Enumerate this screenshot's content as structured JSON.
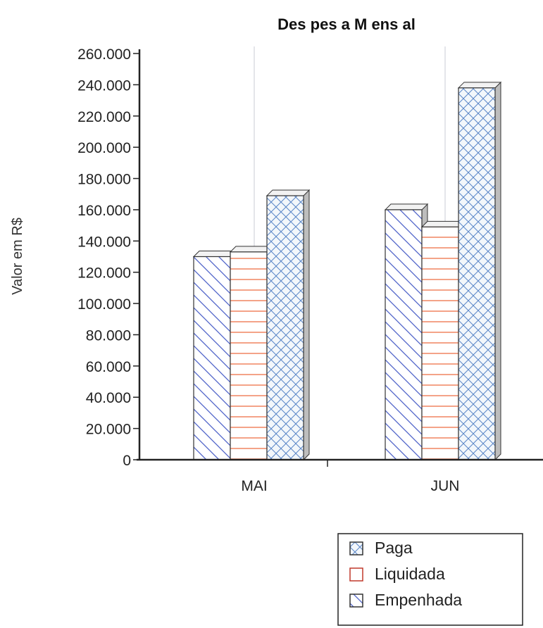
{
  "chart_data": {
    "type": "bar",
    "title": "Des pes a M ens al",
    "xlabel": "",
    "ylabel": "Valor em R$",
    "categories": [
      "MAI",
      "JUN"
    ],
    "ylim": [
      0,
      260000
    ],
    "y_ticks": [
      0,
      20000,
      40000,
      60000,
      80000,
      100000,
      120000,
      140000,
      160000,
      180000,
      200000,
      220000,
      240000,
      260000
    ],
    "y_tick_labels": [
      "0",
      "20.000",
      "40.000",
      "60.000",
      "80.000",
      "100.000",
      "120.000",
      "140.000",
      "160.000",
      "180.000",
      "200.000",
      "220.000",
      "240.000",
      "260.000"
    ],
    "series": [
      {
        "name": "Paga",
        "values": [
          130000,
          160000
        ],
        "color": "#4f63c9",
        "pattern": "diagonal-down"
      },
      {
        "name": "Liquidada",
        "values": [
          133000,
          149000
        ],
        "color": "#f28c6b",
        "pattern": "horizontal"
      },
      {
        "name": "Empenhada",
        "values": [
          169000,
          238000
        ],
        "color": "#5a86c8",
        "pattern": "crosshatch"
      }
    ],
    "legend_entries": [
      "Paga",
      "Liquidada",
      "Empenhada"
    ],
    "legend_position": "bottom-right",
    "grid": false
  }
}
